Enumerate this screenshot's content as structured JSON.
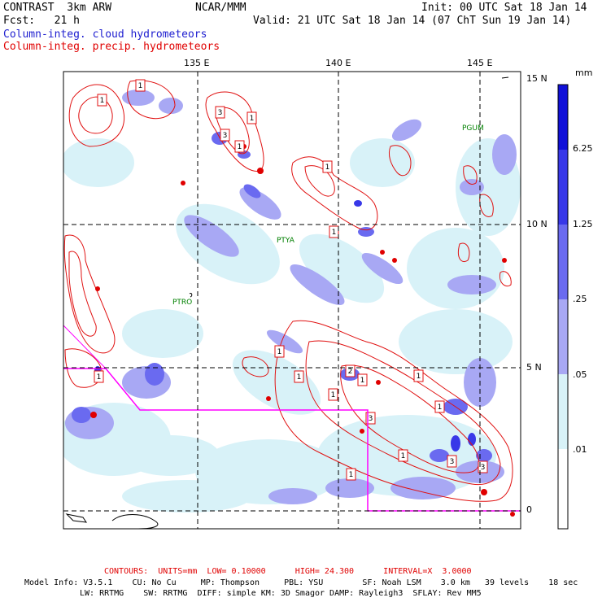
{
  "header": {
    "model": "CONTRAST  3km ARW",
    "center": "NCAR/MMM",
    "init": "Init: 00 UTC Sat 18 Jan 14",
    "fcst": "Fcst:   21 h",
    "valid": "Valid: 21 UTC Sat 18 Jan 14 (07 ChT Sun 19 Jan 14)",
    "field1": "Column-integ. cloud hydrometeors",
    "field2": "Column-integ. precip. hydrometeors"
  },
  "colors": {
    "field1": "#2020d0",
    "field2": "#e00000",
    "contour": "#e01010",
    "box": "#ff00ff",
    "station": "#008000"
  },
  "axes": {
    "lon_labels": [
      "135 E",
      "140 E",
      "145 E"
    ],
    "lat_labels": [
      "15 N",
      "10 N",
      "5 N",
      "0"
    ]
  },
  "stations": [
    "PGUM",
    "PTYA",
    "PTRO"
  ],
  "contour_labels": [
    "1",
    "1",
    "3",
    "1",
    "3",
    "1",
    "1",
    "1",
    "1",
    "1",
    "1",
    "2",
    "1",
    "1",
    "3",
    "3",
    "1",
    "1",
    "1",
    "3",
    "1"
  ],
  "colorbar": {
    "unit": "mm",
    "levels": [
      "6.25",
      "1.25",
      ".25",
      ".05",
      ".01"
    ],
    "colors": [
      "#1010d8",
      "#3838e8",
      "#6a6af0",
      "#a8a8f4",
      "#d8f2f8",
      "#ffffff"
    ]
  },
  "footer": {
    "contours_line": "CONTOURS:  UNITS=mm  LOW= 0.10000      HIGH= 24.300      INTERVAL=X  3.0000",
    "model_info_1": "Model Info: V3.5.1    CU: No Cu     MP: Thompson     PBL: YSU        SF: Noah LSM    3.0 km   39 levels    18 sec",
    "model_info_2": "LW: RRTMG    SW: RRTMG  DIFF: simple KM: 3D Smagor DAMP: Rayleigh3  SFLAY: Rev MM5"
  }
}
